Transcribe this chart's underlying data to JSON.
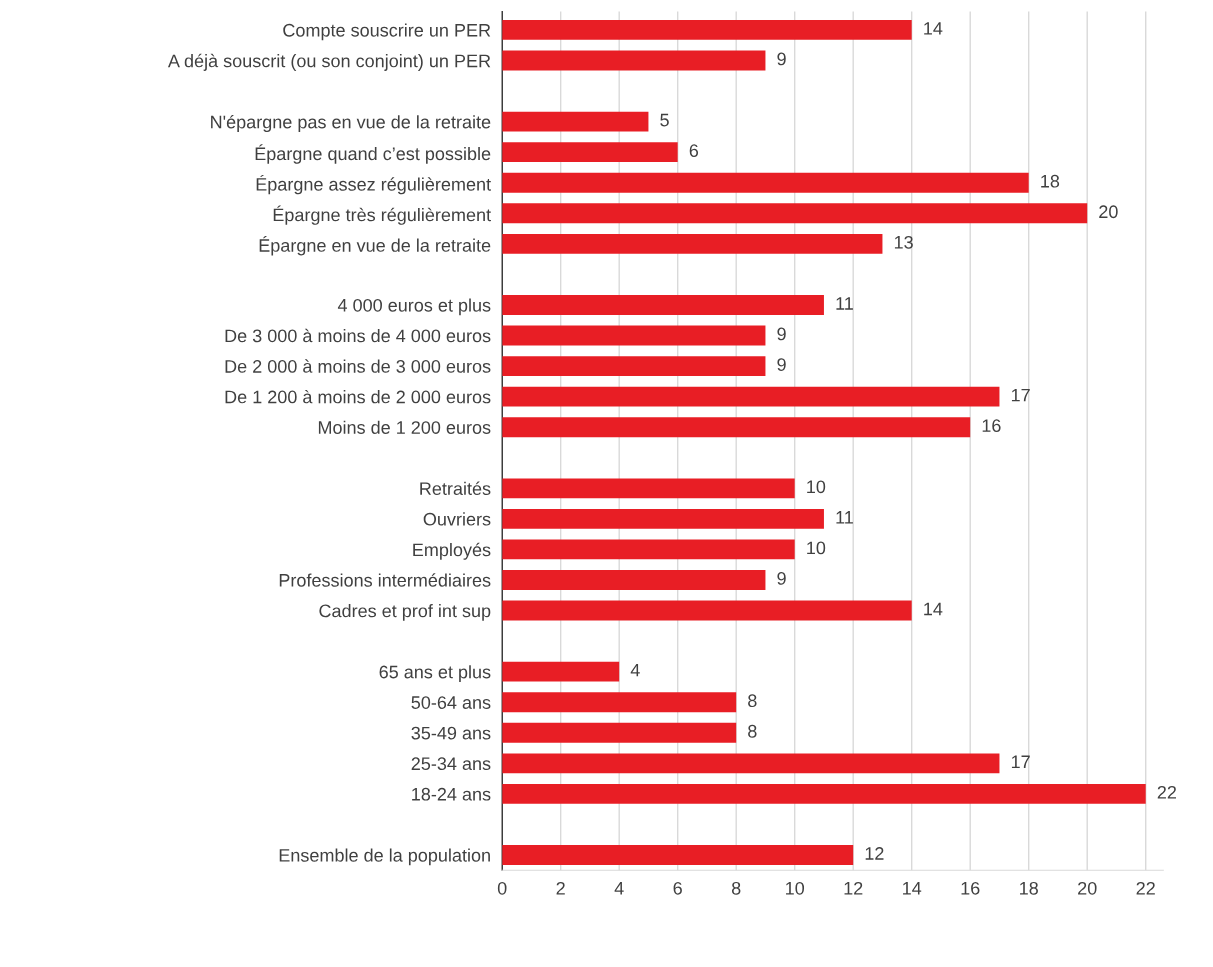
{
  "chart_data": {
    "type": "bar",
    "orientation": "horizontal",
    "categories": [
      "Compte souscrire un PER",
      "A déjà souscrit (ou son conjoint) un PER",
      null,
      "N'épargne pas en vue de la retraite",
      "Épargne quand c’est possible",
      "Épargne assez régulièrement",
      "Épargne très régulièrement",
      "Épargne en vue de la retraite",
      null,
      "4 000 euros et plus",
      "De 3 000 à moins de 4 000 euros",
      "De 2 000 à moins de 3 000 euros",
      "De 1 200 à moins de 2 000 euros",
      "Moins de 1 200 euros",
      null,
      "Retraités",
      "Ouvriers",
      "Employés",
      "Professions intermédiaires",
      "Cadres et prof int sup",
      null,
      "65 ans et plus",
      "50-64 ans",
      "35-49 ans",
      "25-34 ans",
      "18-24 ans",
      null,
      "Ensemble de la population"
    ],
    "values": [
      14,
      9,
      null,
      5,
      6,
      18,
      20,
      13,
      null,
      11,
      9,
      9,
      17,
      16,
      null,
      10,
      11,
      10,
      9,
      14,
      null,
      4,
      8,
      8,
      17,
      22,
      null,
      12
    ],
    "color": "#e81e25",
    "xlim": [
      0,
      22.6
    ],
    "xticks": [
      0,
      2,
      4,
      6,
      8,
      10,
      12,
      14,
      16,
      18,
      20,
      22
    ],
    "grid": "x",
    "data_labels": true
  }
}
